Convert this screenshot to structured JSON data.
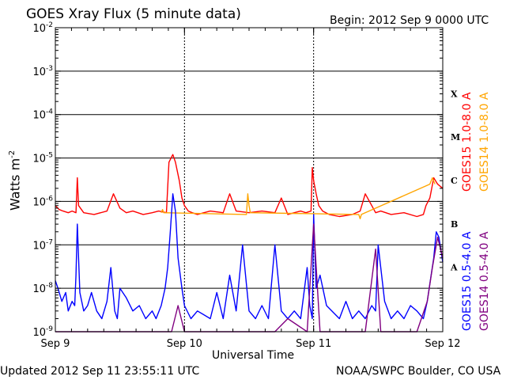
{
  "chart_data": {
    "type": "line",
    "title": "GOES Xray Flux (5 minute data)",
    "begin_label": "Begin:  2012 Sep 9 0000 UTC",
    "xlabel": "Universal Time",
    "ylabel_main": "Watts m",
    "ylabel_exp": "-2",
    "y_scale": "log",
    "ylim": [
      1e-09,
      0.01
    ],
    "xlim_days": [
      0,
      3
    ],
    "grid": true,
    "x_ticks": [
      {
        "day": 0,
        "label": "Sep 9"
      },
      {
        "day": 1,
        "label": "Sep 10"
      },
      {
        "day": 2,
        "label": "Sep 11"
      },
      {
        "day": 3,
        "label": "Sep 12"
      }
    ],
    "y_ticks": [
      {
        "exp": -9,
        "base": "10",
        "sup": "-9"
      },
      {
        "exp": -8,
        "base": "10",
        "sup": "-8"
      },
      {
        "exp": -7,
        "base": "10",
        "sup": "-7"
      },
      {
        "exp": -6,
        "base": "10",
        "sup": "-6"
      },
      {
        "exp": -5,
        "base": "10",
        "sup": "-5"
      },
      {
        "exp": -4,
        "base": "10",
        "sup": "-4"
      },
      {
        "exp": -3,
        "base": "10",
        "sup": "-3"
      },
      {
        "exp": -2,
        "base": "10",
        "sup": "-2"
      }
    ],
    "flare_classes": [
      {
        "label": "X",
        "exp": -3.5
      },
      {
        "label": "M",
        "exp": -4.5
      },
      {
        "label": "C",
        "exp": -5.5
      },
      {
        "label": "B",
        "exp": -6.5
      },
      {
        "label": "A",
        "exp": -7.5
      }
    ],
    "series": [
      {
        "name": "GOES15 1.0-8.0 A",
        "color": "#ff0000",
        "x": [
          0,
          0.03,
          0.06,
          0.1,
          0.13,
          0.16,
          0.17,
          0.18,
          0.22,
          0.3,
          0.4,
          0.45,
          0.5,
          0.55,
          0.6,
          0.68,
          0.75,
          0.8,
          0.86,
          0.88,
          0.91,
          0.93,
          0.96,
          0.98,
          1.0,
          1.03,
          1.06,
          1.1,
          1.2,
          1.3,
          1.35,
          1.4,
          1.5,
          1.6,
          1.7,
          1.75,
          1.8,
          1.85,
          1.9,
          1.94,
          1.98,
          1.99,
          2.0,
          2.02,
          2.04,
          2.07,
          2.12,
          2.2,
          2.3,
          2.36,
          2.4,
          2.45,
          2.48,
          2.52,
          2.6,
          2.7,
          2.8,
          2.85,
          2.87,
          2.9,
          2.93,
          2.96,
          3.0
        ],
        "y": [
          8e-07,
          6.5e-07,
          6e-07,
          5.5e-07,
          6e-07,
          5.5e-07,
          3.5e-06,
          8e-07,
          5.5e-07,
          5e-07,
          6e-07,
          1.5e-06,
          7e-07,
          5.5e-07,
          6e-07,
          5e-07,
          5.5e-07,
          6e-07,
          5.5e-07,
          8e-06,
          1.2e-05,
          8e-06,
          3e-06,
          1.2e-06,
          8e-07,
          6e-07,
          5.5e-07,
          5e-07,
          6e-07,
          5.5e-07,
          1.5e-06,
          6e-07,
          5.5e-07,
          6e-07,
          5.5e-07,
          1.2e-06,
          5e-07,
          5.5e-07,
          6e-07,
          5.5e-07,
          6e-07,
          6e-06,
          3e-06,
          1.5e-06,
          8e-07,
          6e-07,
          5e-07,
          4.5e-07,
          5e-07,
          6e-07,
          1.5e-06,
          8e-07,
          5.5e-07,
          6e-07,
          5e-07,
          5.5e-07,
          4.5e-07,
          5e-07,
          8e-07,
          1.2e-06,
          3.5e-06,
          2.5e-06,
          2e-06
        ]
      },
      {
        "name": "GOES14 1.0-8.0 A",
        "color": "#ffa500",
        "x": [
          0.82,
          0.83,
          0.84,
          1.48,
          1.49,
          1.5,
          1.51,
          2.35,
          2.36,
          2.37,
          2.9,
          2.92,
          2.94
        ],
        "y": [
          5.5e-07,
          6.5e-07,
          5.5e-07,
          5e-07,
          1.5e-06,
          8e-07,
          5.5e-07,
          5e-07,
          4e-07,
          5e-07,
          2.5e-06,
          3.5e-06,
          2.5e-06
        ]
      },
      {
        "name": "GOES15 0.5-4.0 A",
        "color": "#0000ff",
        "x": [
          0,
          0.02,
          0.05,
          0.08,
          0.1,
          0.13,
          0.15,
          0.16,
          0.17,
          0.19,
          0.22,
          0.25,
          0.28,
          0.32,
          0.36,
          0.4,
          0.43,
          0.46,
          0.48,
          0.5,
          0.55,
          0.6,
          0.65,
          0.7,
          0.75,
          0.78,
          0.82,
          0.85,
          0.87,
          0.89,
          0.91,
          0.93,
          0.95,
          0.98,
          1.0,
          1.05,
          1.1,
          1.2,
          1.25,
          1.3,
          1.35,
          1.4,
          1.45,
          1.5,
          1.55,
          1.6,
          1.65,
          1.7,
          1.75,
          1.8,
          1.85,
          1.9,
          1.95,
          1.97,
          1.99,
          2.0,
          2.02,
          2.05,
          2.1,
          2.2,
          2.25,
          2.3,
          2.35,
          2.4,
          2.45,
          2.48,
          2.5,
          2.55,
          2.6,
          2.65,
          2.7,
          2.75,
          2.8,
          2.85,
          2.88,
          2.91,
          2.93,
          2.95,
          2.97,
          3.0
        ],
        "y": [
          1.5e-08,
          1e-08,
          5e-09,
          8e-09,
          3e-09,
          5e-09,
          4e-09,
          2e-08,
          3e-07,
          8e-09,
          3e-09,
          4e-09,
          8e-09,
          3e-09,
          2e-09,
          5e-09,
          3e-08,
          3e-09,
          2e-09,
          1e-08,
          6e-09,
          3e-09,
          4e-09,
          2e-09,
          3e-09,
          2e-09,
          4e-09,
          1e-08,
          3e-08,
          2e-07,
          1.5e-06,
          6e-07,
          5e-08,
          1e-08,
          4e-09,
          2e-09,
          3e-09,
          2e-09,
          8e-09,
          2e-09,
          2e-08,
          3e-09,
          1e-07,
          3e-09,
          2e-09,
          4e-09,
          2e-09,
          1e-07,
          3e-09,
          2e-09,
          3e-09,
          2e-09,
          3e-08,
          4e-09,
          2e-09,
          5e-07,
          1e-08,
          2e-08,
          4e-09,
          2e-09,
          5e-09,
          2e-09,
          3e-09,
          2e-09,
          4e-09,
          3e-09,
          1e-07,
          5e-09,
          2e-09,
          3e-09,
          2e-09,
          4e-09,
          3e-09,
          2e-09,
          5e-09,
          2e-08,
          5e-08,
          2e-07,
          1.5e-07,
          4e-08
        ]
      },
      {
        "name": "GOES14 0.5-4.0 A",
        "color": "#800080",
        "x": [
          0,
          0.3,
          0.6,
          0.9,
          0.95,
          1.0,
          1.4,
          1.7,
          1.8,
          1.95,
          2.0,
          2.05,
          2.4,
          2.48,
          2.52,
          2.8,
          2.88,
          2.92,
          2.96,
          3.0
        ],
        "y": [
          1e-09,
          1e-09,
          1e-09,
          1e-09,
          4e-09,
          1e-09,
          1e-09,
          1e-09,
          2e-09,
          1e-09,
          3e-07,
          1e-09,
          1e-09,
          8e-08,
          1e-09,
          1e-09,
          5e-09,
          3e-08,
          1.5e-07,
          5e-08
        ]
      }
    ]
  },
  "footer": {
    "updated": "Updated 2012 Sep 11 23:55:11 UTC",
    "credit": "NOAA/SWPC Boulder, CO USA"
  }
}
